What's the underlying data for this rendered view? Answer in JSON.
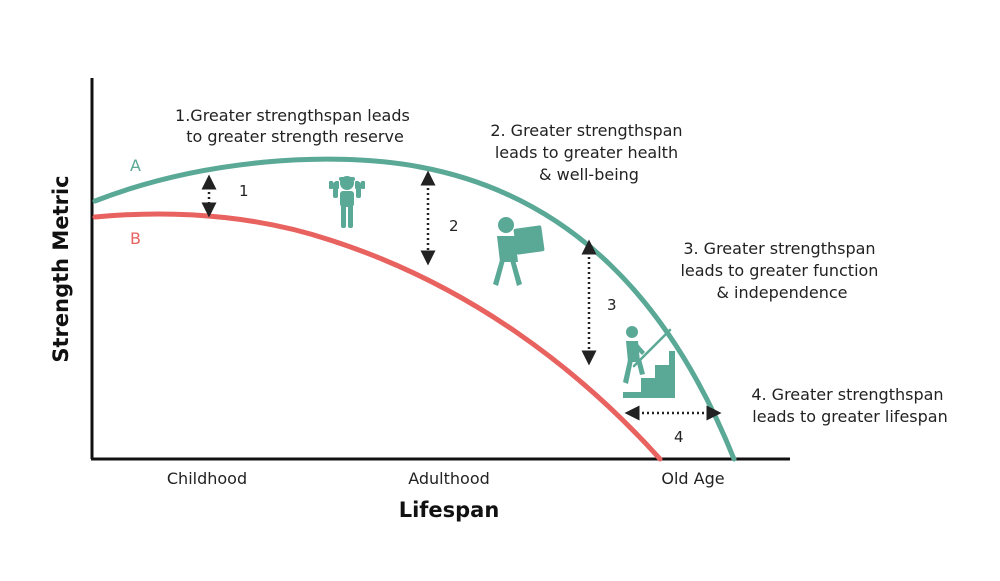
{
  "colors": {
    "curve_a": "#5aa896",
    "curve_b": "#e8625f",
    "axis": "#111111",
    "arrow": "#222222",
    "text": "#222222"
  },
  "axes": {
    "y_title": "Strength Metric",
    "x_title": "Lifespan",
    "x_ticks": [
      "Childhood",
      "Adulthood",
      "Old Age"
    ]
  },
  "curves": {
    "a_label": "A",
    "b_label": "B"
  },
  "callouts": [
    {
      "lines": [
        "1.Greater strengthspan leads",
        "to greater strength reserve"
      ]
    },
    {
      "lines": [
        "2. Greater strengthspan",
        "leads to greater health",
        "& well-being"
      ]
    },
    {
      "lines": [
        "3. Greater strengthspan",
        "leads to greater function",
        "& independence"
      ]
    },
    {
      "lines": [
        "4. Greater strengthspan",
        "leads to greater lifespan"
      ]
    }
  ],
  "markers": [
    "1",
    "2",
    "3",
    "4"
  ],
  "icons": [
    "dumbbell-lifter-icon",
    "box-carrier-icon",
    "stair-climber-icon"
  ]
}
